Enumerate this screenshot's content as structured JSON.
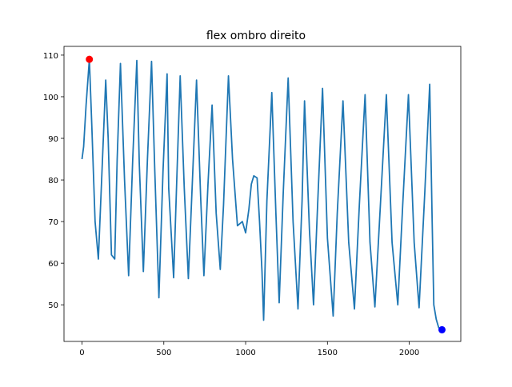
{
  "chart_data": {
    "type": "line",
    "title": "flex ombro direito",
    "xlabel": "",
    "ylabel": "",
    "xlim": [
      -110,
      2315
    ],
    "ylim": [
      41.2,
      112.1
    ],
    "xticks": [
      0,
      500,
      1000,
      1500,
      2000
    ],
    "yticks": [
      50,
      60,
      70,
      80,
      90,
      100,
      110
    ],
    "grid": false,
    "series": [
      {
        "color": "#1f77b4",
        "x": [
          0,
          10,
          25,
          45,
          60,
          80,
          100,
          120,
          145,
          160,
          180,
          200,
          215,
          235,
          260,
          285,
          310,
          335,
          350,
          375,
          400,
          425,
          445,
          470,
          495,
          520,
          530,
          560,
          580,
          600,
          625,
          650,
          675,
          700,
          725,
          745,
          770,
          795,
          820,
          845,
          865,
          895,
          920,
          950,
          980,
          1000,
          1020,
          1035,
          1050,
          1070,
          1085,
          1100,
          1110,
          1130,
          1160,
          1185,
          1205,
          1230,
          1260,
          1290,
          1320,
          1345,
          1360,
          1390,
          1415,
          1440,
          1470,
          1500,
          1535,
          1560,
          1595,
          1630,
          1665,
          1695,
          1730,
          1760,
          1790,
          1825,
          1860,
          1895,
          1930,
          1960,
          1995,
          2030,
          2060,
          2095,
          2125,
          2140,
          2150,
          2165,
          2180,
          2200
        ],
        "y": [
          85,
          88,
          98,
          109,
          93,
          70,
          61,
          80,
          104,
          90,
          62,
          61,
          85,
          108,
          80,
          57,
          85,
          108.7,
          84,
          58,
          85,
          108.5,
          82,
          51.7,
          82,
          105.5,
          78,
          56.5,
          81,
          105,
          78,
          56.3,
          80,
          104,
          76,
          57,
          79,
          98,
          72,
          58.5,
          74,
          105,
          85,
          69,
          70,
          67.3,
          73,
          79,
          81,
          80.5,
          70,
          58,
          46.3,
          75,
          101,
          72,
          50.5,
          77,
          104.5,
          70,
          49,
          75,
          99,
          68,
          50,
          74,
          102,
          66,
          47.3,
          72,
          99,
          65,
          49,
          74,
          100.5,
          65,
          49.5,
          75,
          100.5,
          65,
          50,
          74,
          100.5,
          65,
          49.3,
          77,
          103,
          70,
          50,
          46.5,
          44.5,
          44
        ]
      }
    ],
    "markers": [
      {
        "x": 45,
        "y": 109,
        "color": "#ff0000"
      },
      {
        "x": 2200,
        "y": 44,
        "color": "#0000ff"
      }
    ]
  }
}
